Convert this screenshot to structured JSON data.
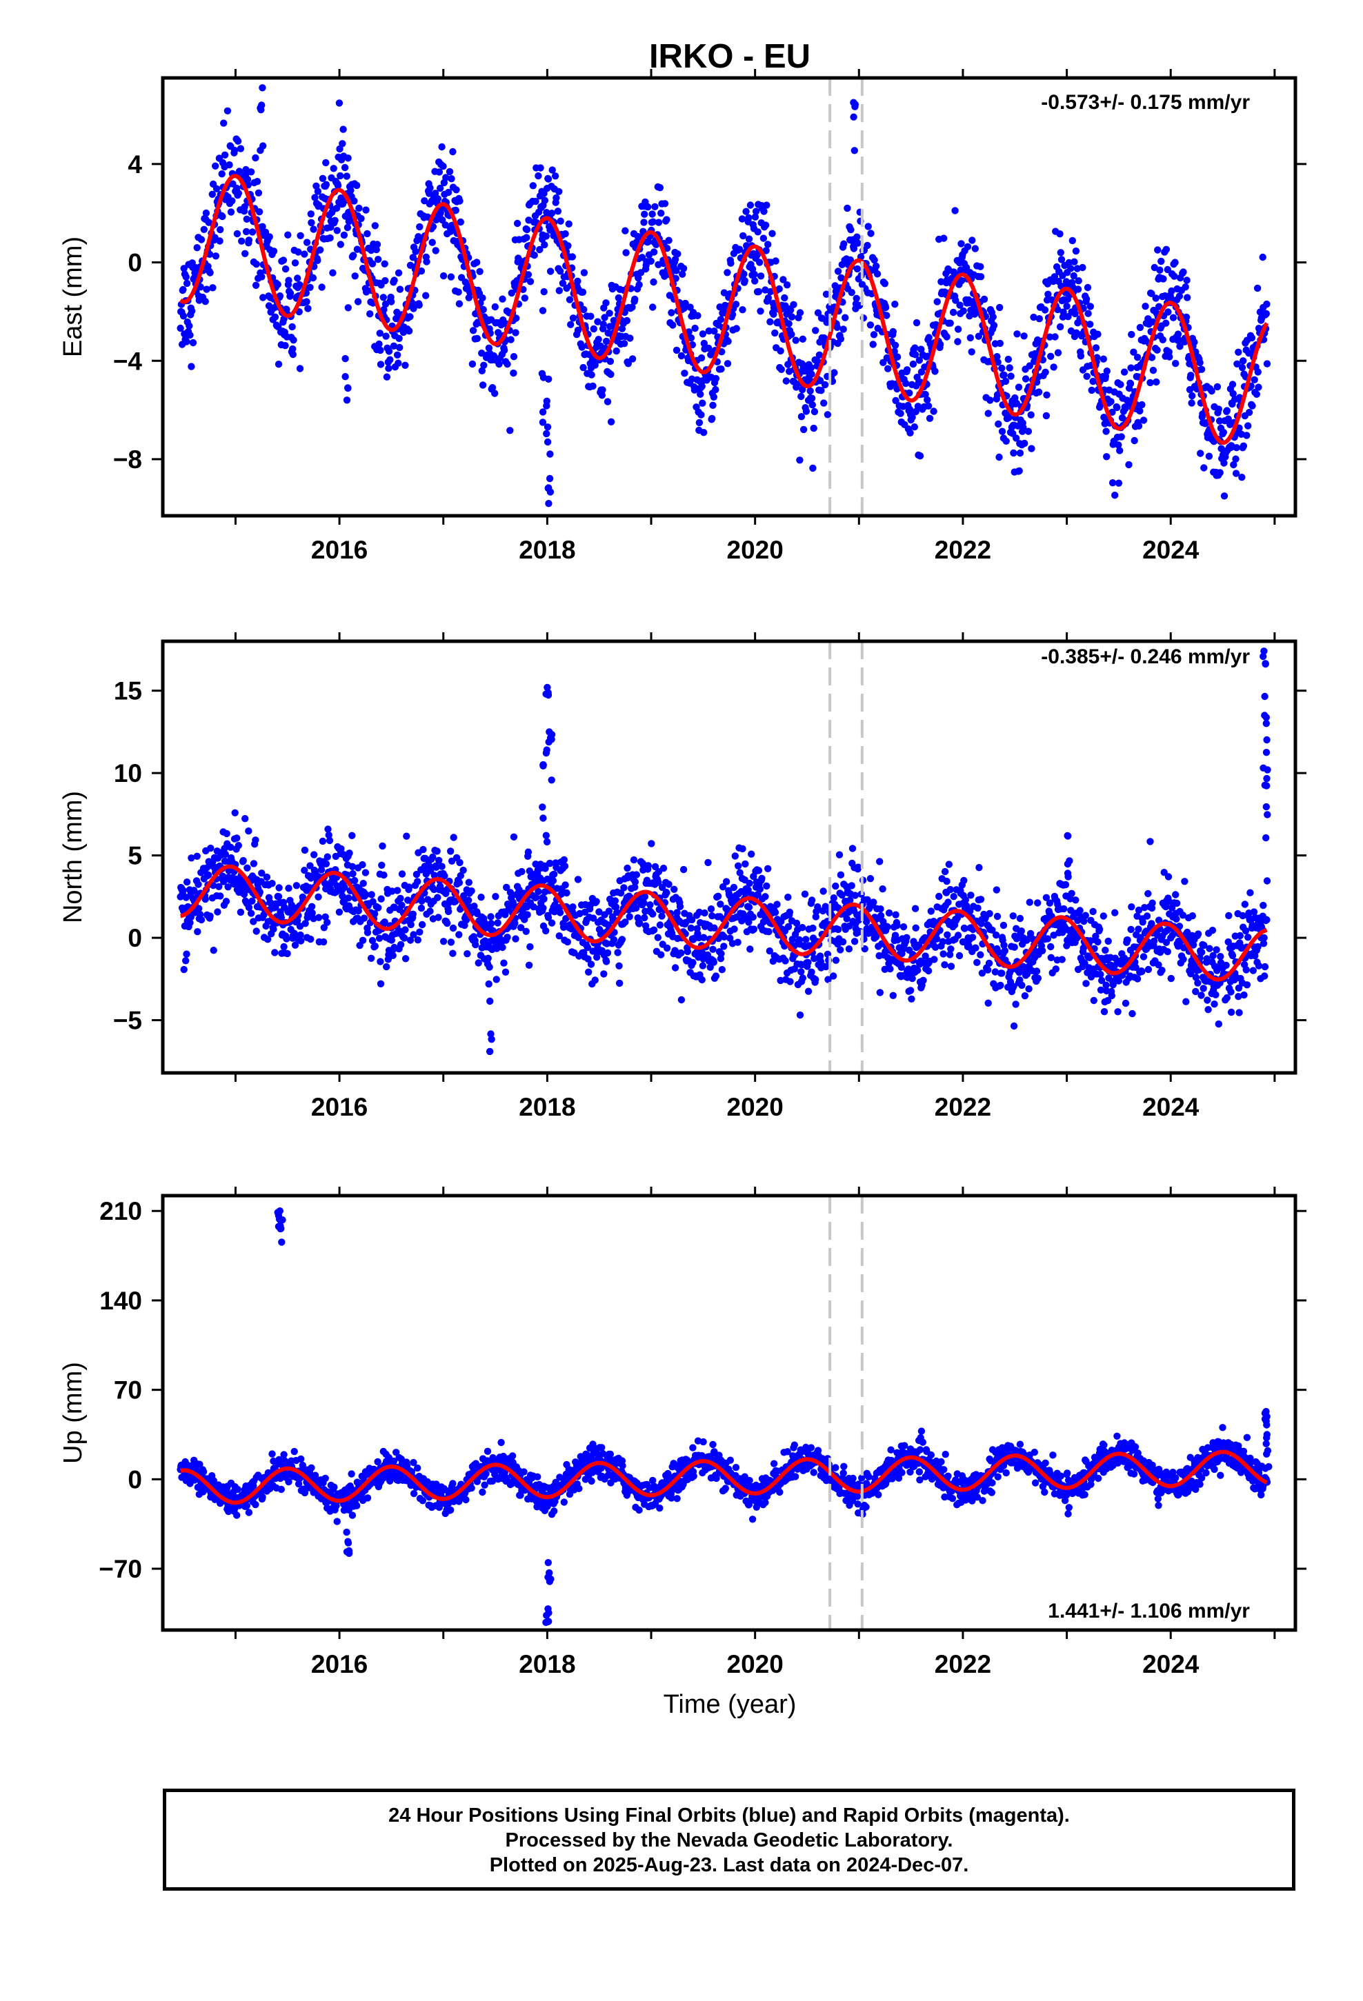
{
  "title": "IRKO - EU",
  "colors": {
    "data": "#0000ff",
    "model": "#ff0000",
    "offset": "#c8c8c8",
    "frame": "#000000"
  },
  "chart_data": [
    {
      "type": "scatter",
      "ylabel": "East (mm)",
      "rate_label": "-0.573+/- 0.175 mm/yr",
      "xlim": [
        2014.3,
        2025.2
      ],
      "ylim": [
        -10.3,
        7.5
      ],
      "xticks": [
        2016,
        2018,
        2020,
        2022,
        2024
      ],
      "yticks": [
        4,
        0,
        -4,
        -8
      ],
      "ytick_labels": [
        "4",
        "0",
        "−4",
        "−8"
      ],
      "trend_at_2014_5": 1.1,
      "trend_slope": -0.573,
      "seasonal_amplitude": 2.7,
      "seasonal_peak": 0.0,
      "noise": 1.1,
      "offsets": [
        2020.72,
        2021.03
      ],
      "outliers": [
        [
          2018.0,
          -7.3
        ],
        [
          2018.02,
          -9.8
        ],
        [
          2016.07,
          -5.6
        ],
        [
          2015.25,
          7.1
        ],
        [
          2020.95,
          6.5
        ],
        [
          2017.96,
          -6.5
        ]
      ]
    },
    {
      "type": "scatter",
      "ylabel": "North (mm)",
      "rate_label": "-0.385+/- 0.246 mm/yr",
      "xlim": [
        2014.3,
        2025.2
      ],
      "ylim": [
        -8.2,
        18.0
      ],
      "xticks": [
        2016,
        2018,
        2020,
        2022,
        2024
      ],
      "yticks": [
        15,
        10,
        5,
        0,
        -5
      ],
      "ytick_labels": [
        "15",
        "10",
        "5",
        "0",
        "−5"
      ],
      "trend_at_2014_5": 2.9,
      "trend_slope": -0.385,
      "seasonal_amplitude": 1.6,
      "seasonal_peak": 0.95,
      "noise": 1.3,
      "offsets": [
        2020.72,
        2021.03
      ],
      "outliers": [
        [
          2018.0,
          15.2
        ],
        [
          2018.03,
          12.5
        ],
        [
          2017.95,
          10.5
        ],
        [
          2024.9,
          17.4
        ],
        [
          2024.91,
          13.5
        ],
        [
          2024.92,
          10.2
        ],
        [
          2017.45,
          -6.9
        ],
        [
          2023.0,
          6.2
        ]
      ]
    },
    {
      "type": "scatter",
      "ylabel": "Up (mm)",
      "rate_label": "1.441+/- 1.106 mm/yr",
      "xlim": [
        2014.3,
        2025.2
      ],
      "ylim": [
        -118,
        222
      ],
      "xticks": [
        2016,
        2018,
        2020,
        2022,
        2024
      ],
      "yticks": [
        210,
        140,
        70,
        0,
        -70
      ],
      "ytick_labels": [
        "210",
        "140",
        "70",
        "0",
        "−70"
      ],
      "trend_at_2014_5": -6,
      "trend_slope": 1.441,
      "seasonal_amplitude": 13,
      "seasonal_peak": 0.5,
      "noise": 6,
      "offsets": [
        2020.72,
        2021.03
      ],
      "outliers": [
        [
          2015.42,
          210
        ],
        [
          2015.44,
          203
        ],
        [
          2018.0,
          -112
        ],
        [
          2018.02,
          -80
        ],
        [
          2016.08,
          -58
        ],
        [
          2024.92,
          53
        ],
        [
          2024.93,
          35
        ]
      ]
    }
  ],
  "xlabel": "Time (year)",
  "caption": {
    "line1": "24 Hour Positions Using Final Orbits (blue) and Rapid Orbits (magenta).",
    "line2": "Processed by the Nevada Geodetic Laboratory.",
    "line3": "Plotted on 2025-Aug-23. Last data on 2024-Dec-07."
  }
}
